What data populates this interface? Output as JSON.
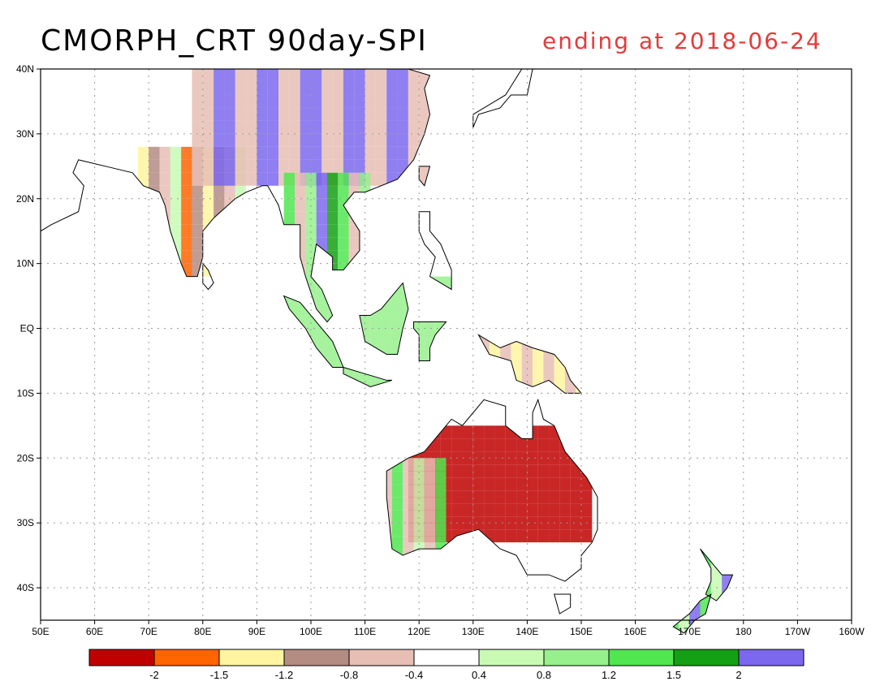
{
  "title": "CMORPH_CRT 90day-SPI",
  "subtitle": "ending at 2018-06-24",
  "colors": {
    "subtitle": "#e63a3a",
    "land_outline": "#000000",
    "grid": "#9a9a9a"
  },
  "map": {
    "lon_range": [
      50,
      200
    ],
    "lat_range": [
      -45,
      40
    ],
    "lat_labels": [
      {
        "lat": 40,
        "label": "40N"
      },
      {
        "lat": 30,
        "label": "30N"
      },
      {
        "lat": 20,
        "label": "20N"
      },
      {
        "lat": 10,
        "label": "10N"
      },
      {
        "lat": 0,
        "label": "EQ"
      },
      {
        "lat": -10,
        "label": "10S"
      },
      {
        "lat": -20,
        "label": "20S"
      },
      {
        "lat": -30,
        "label": "30S"
      },
      {
        "lat": -40,
        "label": "40S"
      }
    ],
    "lon_labels": [
      {
        "lon": 50,
        "label": "50E"
      },
      {
        "lon": 60,
        "label": "60E"
      },
      {
        "lon": 70,
        "label": "70E"
      },
      {
        "lon": 80,
        "label": "80E"
      },
      {
        "lon": 90,
        "label": "90E"
      },
      {
        "lon": 100,
        "label": "100E"
      },
      {
        "lon": 110,
        "label": "110E"
      },
      {
        "lon": 120,
        "label": "120E"
      },
      {
        "lon": 130,
        "label": "130E"
      },
      {
        "lon": 140,
        "label": "140E"
      },
      {
        "lon": 150,
        "label": "150E"
      },
      {
        "lon": 160,
        "label": "160E"
      },
      {
        "lon": 170,
        "label": "170E"
      },
      {
        "lon": 180,
        "label": "180"
      },
      {
        "lon": 190,
        "label": "170W"
      },
      {
        "lon": 200,
        "label": "160W"
      }
    ]
  },
  "colorbar": {
    "colors": [
      "#c00000",
      "#ff6400",
      "#fff5a0",
      "#b48c82",
      "#e6beb4",
      "#ffffff",
      "#c8fab4",
      "#96f08c",
      "#50e650",
      "#14a014",
      "#7b68ee"
    ],
    "labels": [
      "-2",
      "-1.5",
      "-1.2",
      "-0.8",
      "-0.4",
      "0.4",
      "0.8",
      "1.2",
      "1.5",
      "2"
    ]
  },
  "regions": [
    {
      "name": "india",
      "lon": [
        68,
        88
      ],
      "lat": [
        8,
        28
      ],
      "values": [
        -1.3,
        -0.9,
        -1.6,
        0.5,
        -0.6,
        -1.0
      ]
    },
    {
      "name": "tibet-china",
      "lon": [
        78,
        122
      ],
      "lat": [
        22,
        40
      ],
      "values": [
        0.9,
        2.1,
        1.4,
        -0.7,
        1.6,
        -0.5,
        0.6,
        2.2
      ]
    },
    {
      "name": "indochina",
      "lon": [
        95,
        110
      ],
      "lat": [
        8,
        24
      ],
      "values": [
        1.5,
        2.1,
        0.8,
        -0.6,
        1.2
      ]
    },
    {
      "name": "maritime",
      "lon": [
        95,
        130
      ],
      "lat": [
        -10,
        8
      ],
      "values": [
        -0.7,
        0.9,
        -1.3,
        0.5,
        -0.9
      ]
    },
    {
      "name": "new-guinea",
      "lon": [
        131,
        152
      ],
      "lat": [
        -10,
        -1
      ],
      "values": [
        -0.8,
        0.6,
        -1.4,
        1.2
      ]
    },
    {
      "name": "australia-interior",
      "lon": [
        118,
        152
      ],
      "lat": [
        -33,
        -15
      ],
      "values": [
        -1.8,
        -2.2,
        -0.9,
        -1.4,
        -0.6
      ]
    },
    {
      "name": "australia-west",
      "lon": [
        113,
        125
      ],
      "lat": [
        -35,
        -20
      ],
      "values": [
        -0.8,
        0.6,
        -0.5,
        1.3
      ]
    },
    {
      "name": "new-zealand",
      "lon": [
        166,
        179
      ],
      "lat": [
        -47,
        -34
      ],
      "values": [
        1.3,
        2.1,
        0.6
      ]
    }
  ]
}
